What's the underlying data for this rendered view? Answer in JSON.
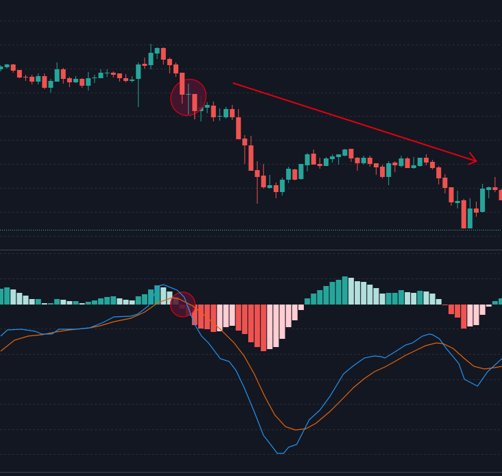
{
  "colors": {
    "background": "#131722",
    "grid": "#2a2e39",
    "up": "#26a69a",
    "down": "#ef5350",
    "hist_up_strong": "#26a69a",
    "hist_up_weak": "#b2dfdb",
    "hist_down_strong": "#ef5350",
    "hist_down_weak": "#ffcdd2",
    "macd_line": "#2196f3",
    "signal_line": "#e8650a",
    "annotation": "#e3000f",
    "annotation_fill": "#4a1530",
    "price_line": "#4fb3a9"
  },
  "chart_data": [
    {
      "type": "candlestick",
      "title": "",
      "grid": true,
      "ohlc_fields": [
        "open",
        "high",
        "low",
        "close"
      ],
      "price_line": 65,
      "candles": [
        [
          299,
          305,
          296,
          303
        ],
        [
          302,
          307,
          300,
          306
        ],
        [
          306,
          307,
          294,
          297
        ],
        [
          298,
          298,
          286,
          287
        ],
        [
          288,
          291,
          282,
          287
        ],
        [
          288,
          291,
          277,
          281
        ],
        [
          281,
          293,
          277,
          289
        ],
        [
          289,
          293,
          270,
          272
        ],
        [
          272,
          285,
          265,
          282
        ],
        [
          281,
          309,
          281,
          299
        ],
        [
          299,
          301,
          278,
          285
        ],
        [
          286,
          288,
          273,
          280
        ],
        [
          280,
          289,
          279,
          285
        ],
        [
          285,
          286,
          272,
          275
        ],
        [
          275,
          295,
          268,
          286
        ],
        [
          286,
          291,
          279,
          287
        ],
        [
          286,
          299,
          286,
          294
        ],
        [
          293,
          299,
          288,
          294
        ],
        [
          294,
          296,
          287,
          291
        ],
        [
          293,
          293,
          281,
          286
        ],
        [
          286,
          292,
          280,
          282
        ],
        [
          282,
          289,
          280,
          284
        ],
        [
          285,
          309,
          244,
          306
        ],
        [
          307,
          316,
          300,
          304
        ],
        [
          305,
          336,
          299,
          323
        ],
        [
          322,
          331,
          314,
          330
        ],
        [
          330,
          331,
          306,
          313
        ],
        [
          314,
          316,
          293,
          305
        ],
        [
          306,
          309,
          288,
          293
        ],
        [
          294,
          294,
          249,
          262
        ],
        [
          262,
          278,
          233,
          263
        ],
        [
          263,
          263,
          226,
          238
        ],
        [
          238,
          260,
          223,
          244
        ],
        [
          243,
          251,
          235,
          247
        ],
        [
          246,
          252,
          223,
          229
        ],
        [
          230,
          242,
          224,
          231
        ],
        [
          229,
          244,
          227,
          241
        ],
        [
          241,
          247,
          225,
          229
        ],
        [
          229,
          241,
          197,
          197
        ],
        [
          198,
          203,
          161,
          188
        ],
        [
          188,
          202,
          151,
          151
        ],
        [
          152,
          165,
          103,
          142
        ],
        [
          144,
          161,
          125,
          127
        ],
        [
          126,
          145,
          125,
          130
        ],
        [
          130,
          134,
          111,
          120
        ],
        [
          120,
          141,
          115,
          138
        ],
        [
          138,
          157,
          133,
          154
        ],
        [
          153,
          154,
          137,
          138
        ],
        [
          139,
          161,
          138,
          161
        ],
        [
          159,
          177,
          150,
          175
        ],
        [
          176,
          182,
          160,
          160
        ],
        [
          161,
          170,
          154,
          158
        ],
        [
          158,
          171,
          158,
          169
        ],
        [
          168,
          175,
          163,
          172
        ],
        [
          171,
          175,
          160,
          175
        ],
        [
          173,
          183,
          172,
          182
        ],
        [
          183,
          183,
          164,
          169
        ],
        [
          170,
          171,
          151,
          162
        ],
        [
          162,
          173,
          160,
          170
        ],
        [
          170,
          173,
          157,
          161
        ],
        [
          162,
          162,
          145,
          156
        ],
        [
          157,
          160,
          140,
          142
        ],
        [
          142,
          165,
          130,
          162
        ],
        [
          163,
          165,
          149,
          159
        ],
        [
          158,
          173,
          156,
          169
        ],
        [
          169,
          171,
          155,
          155
        ],
        [
          155,
          171,
          154,
          159
        ],
        [
          158,
          170,
          157,
          170
        ],
        [
          170,
          175,
          159,
          163
        ],
        [
          164,
          167,
          153,
          155
        ],
        [
          156,
          158,
          131,
          140
        ],
        [
          141,
          146,
          118,
          126
        ],
        [
          127,
          127,
          100,
          105
        ],
        [
          104,
          122,
          96,
          107
        ],
        [
          108,
          110,
          67,
          67
        ],
        [
          67,
          111,
          67,
          96
        ],
        [
          96,
          106,
          84,
          90
        ],
        [
          91,
          132,
          90,
          125
        ],
        [
          123,
          128,
          111,
          127
        ],
        [
          127,
          142,
          120,
          123
        ],
        [
          123,
          125,
          108,
          108
        ]
      ],
      "annotations": {
        "highlight_ellipse_candle_index": 30,
        "trend_arrow": {
          "from": {
            "index": 37,
            "value": 279
          },
          "to": {
            "index": 76,
            "value": 165
          }
        }
      }
    },
    {
      "type": "bar+line",
      "title": "",
      "grid": true,
      "histogram": [
        23,
        25,
        22,
        17,
        13,
        8,
        8,
        2,
        2,
        8,
        7,
        5,
        5,
        2,
        4,
        6,
        9,
        11,
        12,
        9,
        7,
        6,
        12,
        15,
        22,
        28,
        25,
        19,
        11,
        -6,
        -16,
        -30,
        -35,
        -36,
        -40,
        -39,
        -33,
        -31,
        -38,
        -43,
        -55,
        -62,
        -68,
        -65,
        -62,
        -50,
        -33,
        -23,
        -8,
        9,
        16,
        21,
        27,
        33,
        36,
        41,
        39,
        34,
        33,
        29,
        24,
        16,
        17,
        17,
        21,
        18,
        17,
        20,
        19,
        16,
        8,
        -1,
        -14,
        -19,
        -35,
        -32,
        -30,
        -15,
        -3,
        5,
        9
      ],
      "macd": [
        [
          0,
          -46
        ],
        [
          1.1,
          -37
        ],
        [
          3.3,
          -36
        ],
        [
          5.5,
          -39
        ],
        [
          6.6,
          -43
        ],
        [
          8.2,
          -43
        ],
        [
          9.3,
          -36
        ],
        [
          12,
          -36
        ],
        [
          14.2,
          -34
        ],
        [
          16.4,
          -26
        ],
        [
          18.1,
          -18
        ],
        [
          20.8,
          -17
        ],
        [
          21.9,
          -14
        ],
        [
          23.6,
          -2
        ],
        [
          25.2,
          27
        ],
        [
          26,
          29
        ],
        [
          28.2,
          21
        ],
        [
          29.3,
          11
        ],
        [
          31,
          -29
        ],
        [
          32.1,
          -46
        ],
        [
          33.2,
          -56
        ],
        [
          35.1,
          -79
        ],
        [
          36.5,
          -83
        ],
        [
          37.6,
          -96
        ],
        [
          38.9,
          -121
        ],
        [
          40.5,
          -156
        ],
        [
          42,
          -191
        ],
        [
          43.3,
          -206
        ],
        [
          44.2,
          -217
        ],
        [
          45.2,
          -217
        ],
        [
          46,
          -208
        ],
        [
          47.3,
          -204
        ],
        [
          48.2,
          -188
        ],
        [
          49.3,
          -168
        ],
        [
          51,
          -154
        ],
        [
          52.6,
          -134
        ],
        [
          54.8,
          -101
        ],
        [
          56.4,
          -89
        ],
        [
          58.1,
          -78
        ],
        [
          59.7,
          -75
        ],
        [
          60.8,
          -76
        ],
        [
          61.4,
          -78
        ],
        [
          63,
          -69
        ],
        [
          64.7,
          -59
        ],
        [
          65.8,
          -56
        ],
        [
          67.4,
          -46
        ],
        [
          68.5,
          -43
        ],
        [
          69,
          -44
        ],
        [
          70.1,
          -50
        ],
        [
          71.2,
          -64
        ],
        [
          72.3,
          -76
        ],
        [
          73.2,
          -86
        ],
        [
          74.1,
          -109
        ],
        [
          76.2,
          -119
        ],
        [
          77.8,
          -98
        ],
        [
          80.2,
          -78
        ]
      ],
      "signal": [
        [
          0,
          -68
        ],
        [
          2.2,
          -52
        ],
        [
          4.4,
          -46
        ],
        [
          6.6,
          -44
        ],
        [
          8.8,
          -40
        ],
        [
          11,
          -37
        ],
        [
          14.2,
          -34
        ],
        [
          15.9,
          -31
        ],
        [
          18.1,
          -25
        ],
        [
          20.8,
          -20
        ],
        [
          23,
          -11
        ],
        [
          25.2,
          3
        ],
        [
          27.4,
          10
        ],
        [
          28.5,
          8
        ],
        [
          30.7,
          -2
        ],
        [
          32.9,
          -18
        ],
        [
          35.1,
          -36
        ],
        [
          37.3,
          -56
        ],
        [
          38.9,
          -75
        ],
        [
          40.5,
          -101
        ],
        [
          42.2,
          -134
        ],
        [
          43.8,
          -161
        ],
        [
          45.5,
          -178
        ],
        [
          47.1,
          -183
        ],
        [
          48.8,
          -181
        ],
        [
          50.4,
          -173
        ],
        [
          52.6,
          -156
        ],
        [
          54.8,
          -136
        ],
        [
          56.4,
          -121
        ],
        [
          58.1,
          -108
        ],
        [
          59.7,
          -98
        ],
        [
          61.4,
          -91
        ],
        [
          63,
          -83
        ],
        [
          64.7,
          -74
        ],
        [
          66.3,
          -67
        ],
        [
          67.9,
          -60
        ],
        [
          69.6,
          -56
        ],
        [
          70.7,
          -57
        ],
        [
          72.3,
          -64
        ],
        [
          74,
          -78
        ],
        [
          75.6,
          -90
        ],
        [
          77.3,
          -94
        ],
        [
          78.9,
          -92
        ],
        [
          80.2,
          -90
        ]
      ],
      "annotations": {
        "highlight_circle_candle_index": 29
      }
    }
  ]
}
